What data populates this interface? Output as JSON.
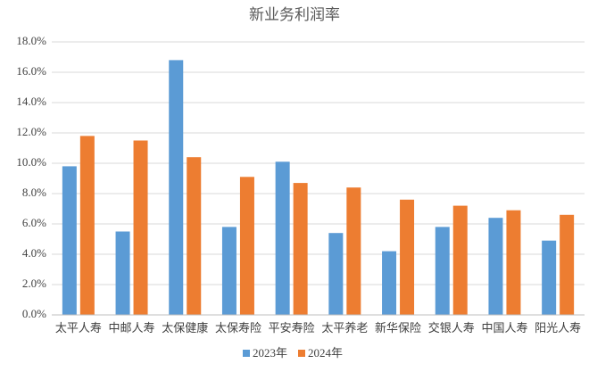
{
  "chart_data": {
    "type": "bar",
    "title": "新业务利润率",
    "categories": [
      "太平人寿",
      "中邮人寿",
      "太保健康",
      "太保寿险",
      "平安寿险",
      "太平养老",
      "新华保险",
      "交银人寿",
      "中国人寿",
      "阳光人寿"
    ],
    "series": [
      {
        "name": "2023年",
        "color": "#5b9bd5",
        "values": [
          9.8,
          5.5,
          16.8,
          5.8,
          10.1,
          5.4,
          4.2,
          5.8,
          6.4,
          4.9
        ]
      },
      {
        "name": "2024年",
        "color": "#ed7d31",
        "values": [
          11.8,
          11.5,
          10.4,
          9.1,
          8.7,
          8.4,
          7.6,
          7.2,
          6.9,
          6.6
        ]
      }
    ],
    "ylim": [
      0,
      18
    ],
    "yticks": [
      {
        "value": 0,
        "label": "0.0%"
      },
      {
        "value": 2,
        "label": "2.0%"
      },
      {
        "value": 4,
        "label": "4.0%"
      },
      {
        "value": 6,
        "label": "6.0%"
      },
      {
        "value": 8,
        "label": "8.0%"
      },
      {
        "value": 10,
        "label": "10.0%"
      },
      {
        "value": 12,
        "label": "12.0%"
      },
      {
        "value": 14,
        "label": "14.0%"
      },
      {
        "value": 16,
        "label": "16.0%"
      },
      {
        "value": 18,
        "label": "18.0%"
      }
    ],
    "grid": true,
    "legend": "bottom"
  }
}
